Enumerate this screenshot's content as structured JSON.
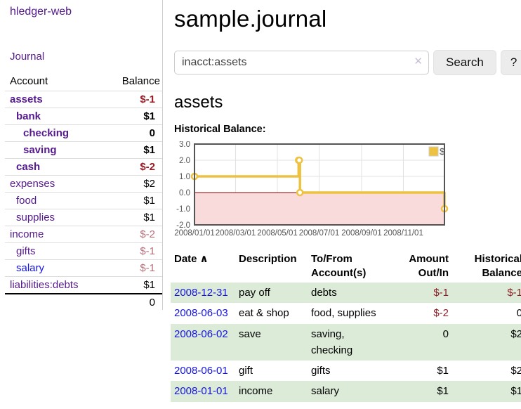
{
  "app": {
    "title": "hledger-web"
  },
  "sidebar": {
    "nav_journal": "Journal",
    "accounts": {
      "header_account": "Account",
      "header_balance": "Balance",
      "rows": [
        {
          "name": "assets",
          "indent": 0,
          "bold": true,
          "balance": "$-1",
          "negative": true,
          "blue": false
        },
        {
          "name": "bank",
          "indent": 1,
          "bold": true,
          "balance": "$1",
          "negative": false,
          "blue": false
        },
        {
          "name": "checking",
          "indent": 2,
          "bold": true,
          "balance": "0",
          "negative": false,
          "blue": false
        },
        {
          "name": "saving",
          "indent": 2,
          "bold": true,
          "balance": "$1",
          "negative": false,
          "blue": false
        },
        {
          "name": "cash",
          "indent": 1,
          "bold": true,
          "balance": "$-2",
          "negative": true,
          "blue": false
        },
        {
          "name": "expenses",
          "indent": 0,
          "bold": false,
          "balance": "$2",
          "negative": false,
          "blue": false
        },
        {
          "name": "food",
          "indent": 1,
          "bold": false,
          "balance": "$1",
          "negative": false,
          "blue": false
        },
        {
          "name": "supplies",
          "indent": 1,
          "bold": false,
          "balance": "$1",
          "negative": false,
          "blue": false
        },
        {
          "name": "income",
          "indent": 0,
          "bold": false,
          "balance": "$-2",
          "negative": true,
          "blue": false
        },
        {
          "name": "gifts",
          "indent": 1,
          "bold": false,
          "balance": "$-1",
          "negative": true,
          "blue": false
        },
        {
          "name": "salary",
          "indent": 1,
          "bold": false,
          "balance": "$-1",
          "negative": true,
          "blue": true
        },
        {
          "name": "liabilities:debts",
          "indent": 0,
          "bold": false,
          "balance": "$1",
          "negative": false,
          "blue": false
        }
      ],
      "total": "0"
    }
  },
  "header": {
    "title": "sample.journal"
  },
  "search": {
    "value": "inacct:assets",
    "clear_icon": "✕",
    "submit_label": "Search",
    "help_label": "?"
  },
  "account_page": {
    "heading": "assets",
    "chart_title": "Historical Balance:"
  },
  "chart_data": {
    "type": "line",
    "step": true,
    "title": "Historical Balance:",
    "series": [
      {
        "name": "$",
        "color": "#edc240",
        "points": [
          {
            "x": "2008-01-01",
            "y": 1
          },
          {
            "x": "2008-06-01",
            "y": 2
          },
          {
            "x": "2008-06-02",
            "y": 2
          },
          {
            "x": "2008-06-03",
            "y": 0
          },
          {
            "x": "2008-12-31",
            "y": -1
          }
        ]
      }
    ],
    "xlim": [
      "2008-01-01",
      "2008-12-31"
    ],
    "ylim": [
      -2,
      3
    ],
    "ytick_values": [
      3,
      2,
      1,
      0,
      -1,
      -2
    ],
    "ytick_labels": [
      "3.0",
      "2.0",
      "1.0",
      "0.0",
      "-1.0",
      "-2.0"
    ],
    "xticks": [
      {
        "label": "2008/01/01",
        "date": "2008-01-01"
      },
      {
        "label": "2008/03/01",
        "date": "2008-03-01"
      },
      {
        "label": "2008/05/01",
        "date": "2008-05-01"
      },
      {
        "label": "2008/07/01",
        "date": "2008-07-01"
      },
      {
        "label": "2008/09/01",
        "date": "2008-09-01"
      },
      {
        "label": "2008/11/01",
        "date": "2008-11-01"
      }
    ],
    "legend": {
      "position": "top-right",
      "label": "$"
    },
    "grid": true,
    "colors": {
      "border": "#545454",
      "gridline": "#e2e2e2",
      "tick_text": "#545454",
      "zero_line": "#8b0000",
      "negative_region": "#f9dbdb",
      "marker_fill": "#ffffff"
    }
  },
  "register": {
    "headers": {
      "date": "Date",
      "sort_indicator": "∧",
      "description": "Description",
      "accounts": "To/From Account(s)",
      "amount": "Amount Out/In",
      "balance": "Historical Balance"
    },
    "rows": [
      {
        "date": "2008-12-31",
        "description": "pay off",
        "accounts": "debts",
        "amount": "$-1",
        "amount_negative": true,
        "balance": "$-1",
        "balance_negative": true,
        "shaded": true
      },
      {
        "date": "2008-06-03",
        "description": "eat & shop",
        "accounts": "food, supplies",
        "amount": "$-2",
        "amount_negative": true,
        "balance": "0",
        "balance_negative": false,
        "shaded": false
      },
      {
        "date": "2008-06-02",
        "description": "save",
        "accounts": "saving, checking",
        "amount": "0",
        "amount_negative": false,
        "balance": "$2",
        "balance_negative": false,
        "shaded": true
      },
      {
        "date": "2008-06-01",
        "description": "gift",
        "accounts": "gifts",
        "amount": "$1",
        "amount_negative": false,
        "balance": "$2",
        "balance_negative": false,
        "shaded": false
      },
      {
        "date": "2008-01-01",
        "description": "income",
        "accounts": "salary",
        "amount": "$1",
        "amount_negative": false,
        "balance": "$1",
        "balance_negative": false,
        "shaded": true
      }
    ]
  }
}
